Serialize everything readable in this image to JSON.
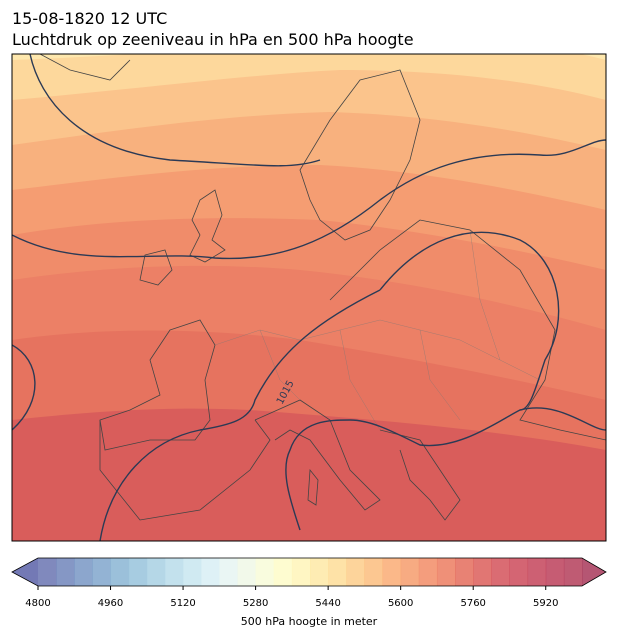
{
  "header": {
    "date": "15-08-1820 12 UTC",
    "title": "Luchtdruk op zeeniveau in hPa en 500 hPa hoogte"
  },
  "map": {
    "isobar_label": "1015"
  },
  "colorbar": {
    "label": "500 hPa hoogte in meter",
    "range": [
      4800,
      6000
    ],
    "ticks": [
      4800,
      4960,
      5120,
      5280,
      5440,
      5600,
      5760,
      5920
    ],
    "colors": [
      "#6a74b2",
      "#7085bb",
      "#7896c4",
      "#80a6cc",
      "#8ab5d4",
      "#98c3dc",
      "#a8d0e3",
      "#b8dcea",
      "#c8e6f0",
      "#d8eef4",
      "#e6f4f2",
      "#f0f8e6",
      "#f8fbd8",
      "#fefbc8",
      "#fff5b8",
      "#fee9a6",
      "#fedd98",
      "#fdcd8a",
      "#fcbd7e",
      "#faac74",
      "#f69c6c",
      "#f28c66",
      "#ec7c60",
      "#e46c5c",
      "#dc5e5a",
      "#d4525a",
      "#cc4a5a",
      "#c4445a",
      "#bc405a",
      "#b43e5a"
    ],
    "extend_colors": [
      "#5a62a8",
      "#a8385a"
    ]
  }
}
